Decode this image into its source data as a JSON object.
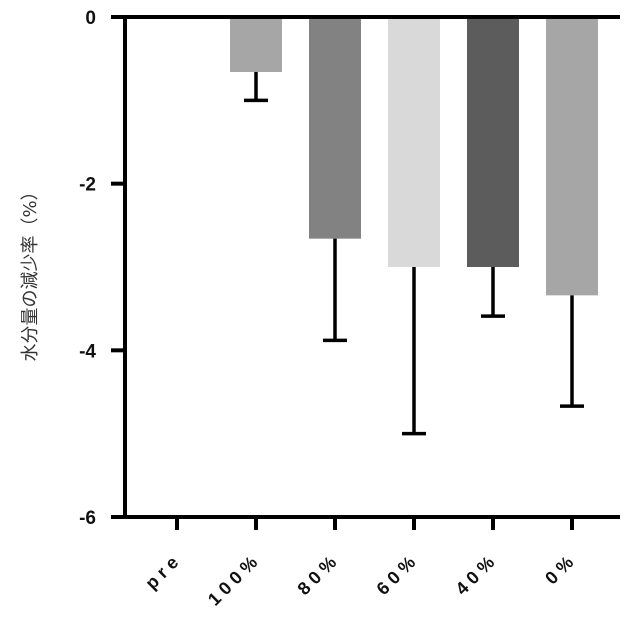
{
  "chart_data": {
    "type": "bar",
    "title": "",
    "xlabel": "",
    "ylabel": "水分量の減少率（%）",
    "categories": [
      "pre",
      "100%",
      "80%",
      "60%",
      "40%",
      "0%"
    ],
    "values": [
      0,
      -0.66,
      -2.66,
      -3.0,
      -3.0,
      -3.34
    ],
    "error": [
      0,
      0.34,
      1.22,
      2.0,
      0.59,
      1.33
    ],
    "ylim": [
      -6,
      0
    ],
    "yticks": [
      0,
      -2,
      -4,
      -6
    ],
    "ytick_labels": [
      "0",
      "-2",
      "-4",
      "-6"
    ],
    "bar_colors": [
      "#a6a6a6",
      "#a6a6a6",
      "#828282",
      "#d9d9d9",
      "#5c5c5c",
      "#a6a6a6"
    ],
    "error_bar_color": "#000000",
    "axis_color": "#000000",
    "grid": false,
    "legend": "none"
  }
}
